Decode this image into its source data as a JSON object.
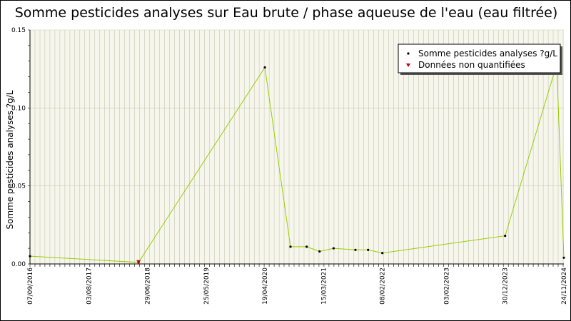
{
  "chart_data": {
    "type": "line",
    "title": "Somme pesticides analyses sur Eau brute / phase aqueuse de l'eau (eau filtrée)",
    "xlabel": "",
    "ylabel": "Somme pesticides analyses ?g/L",
    "ylim": [
      0,
      0.15
    ],
    "xlim": [
      "2016-09-07",
      "2024-11-24"
    ],
    "y_ticks": [
      "0.00",
      "0.05",
      "0.10",
      "0.15"
    ],
    "x_ticks": [
      "07/09/2016",
      "03/08/2017",
      "29/06/2018",
      "25/05/2019",
      "19/04/2020",
      "15/03/2021",
      "08/02/2022",
      "03/02/2023",
      "30/12/2023",
      "24/11/2024"
    ],
    "grid": true,
    "legend_position": "top-right",
    "series": [
      {
        "name": "Somme pesticides analyses ?g/L",
        "color": "#99cc00",
        "marker_color": "#000000",
        "points": [
          {
            "x": "2016-09-07",
            "y": 0.005
          },
          {
            "x": "2018-05-10",
            "y": 0.001
          },
          {
            "x": "2020-04-19",
            "y": 0.126
          },
          {
            "x": "2020-09-10",
            "y": 0.011
          },
          {
            "x": "2020-12-10",
            "y": 0.011
          },
          {
            "x": "2021-02-20",
            "y": 0.008
          },
          {
            "x": "2021-05-10",
            "y": 0.01
          },
          {
            "x": "2021-09-10",
            "y": 0.009
          },
          {
            "x": "2021-11-20",
            "y": 0.009
          },
          {
            "x": "2022-02-08",
            "y": 0.007
          },
          {
            "x": "2023-12-30",
            "y": 0.018
          },
          {
            "x": "2024-10-15",
            "y": 0.128
          },
          {
            "x": "2024-11-24",
            "y": 0.004
          }
        ]
      },
      {
        "name": "Données non quantifiées",
        "color": "#cc0000",
        "points": [
          {
            "x": "2018-05-10",
            "y": 0.001
          }
        ]
      }
    ]
  }
}
